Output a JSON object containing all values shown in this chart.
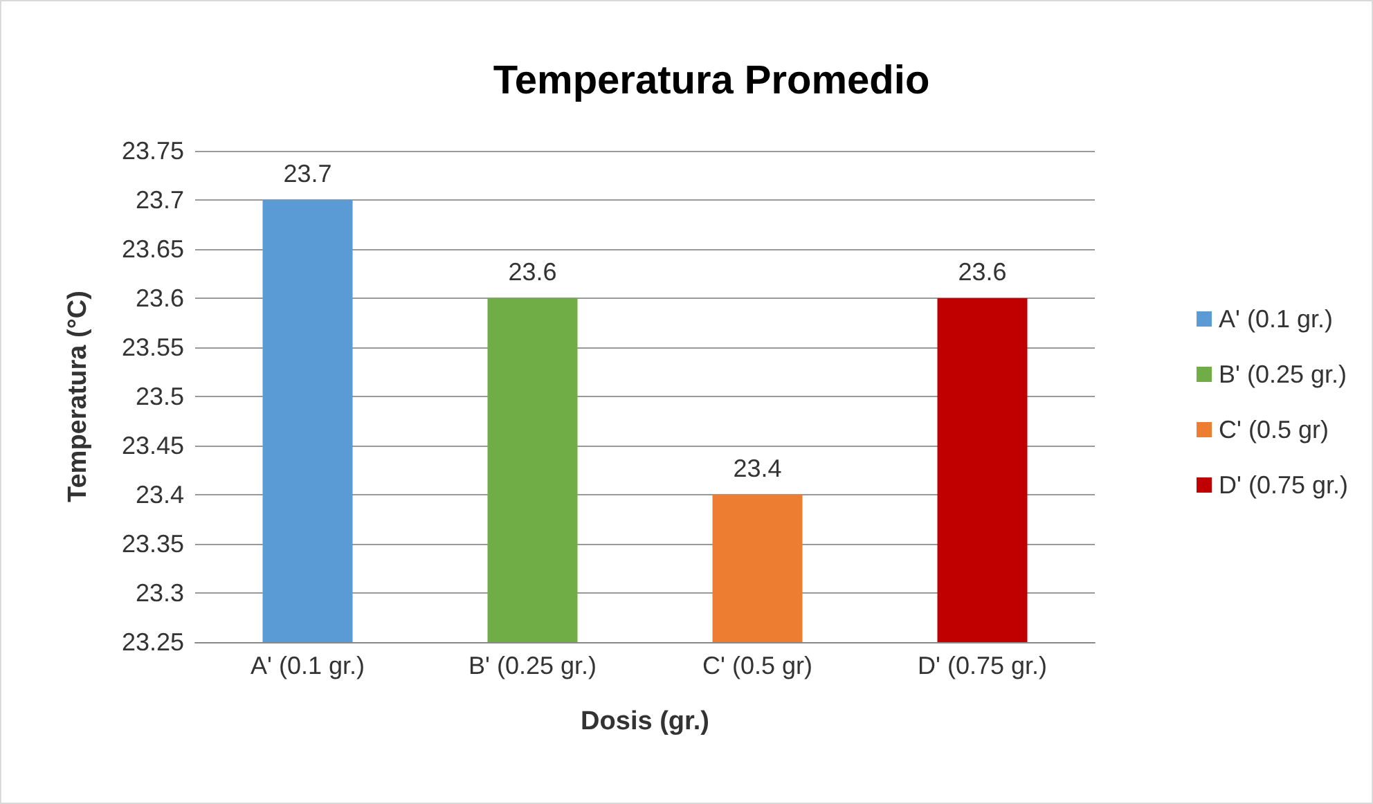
{
  "chart_data": {
    "type": "bar",
    "title": "Temperatura Promedio",
    "xlabel": "Dosis (gr.)",
    "ylabel": "Temperatura (°C)",
    "categories": [
      "A' (0.1 gr.)",
      "B' (0.25 gr.)",
      "C' (0.5 gr)",
      "D' (0.75 gr.)"
    ],
    "series": [
      {
        "name": "A' (0.1 gr.)",
        "color": "#5b9bd5",
        "values": [
          23.7,
          null,
          null,
          null
        ]
      },
      {
        "name": "B' (0.25 gr.)",
        "color": "#70ad47",
        "values": [
          null,
          23.6,
          null,
          null
        ]
      },
      {
        "name": "C' (0.5 gr)",
        "color": "#ed7d31",
        "values": [
          null,
          null,
          23.4,
          null
        ]
      },
      {
        "name": "D' (0.75 gr.)",
        "color": "#c00000",
        "values": [
          null,
          null,
          null,
          23.6
        ]
      }
    ],
    "stacked": true,
    "ylim": [
      23.25,
      23.75
    ],
    "yticks": [
      23.25,
      23.3,
      23.35,
      23.4,
      23.45,
      23.5,
      23.55,
      23.6,
      23.65,
      23.7,
      23.75
    ],
    "grid": "y",
    "legend": "right",
    "data_labels": true
  }
}
